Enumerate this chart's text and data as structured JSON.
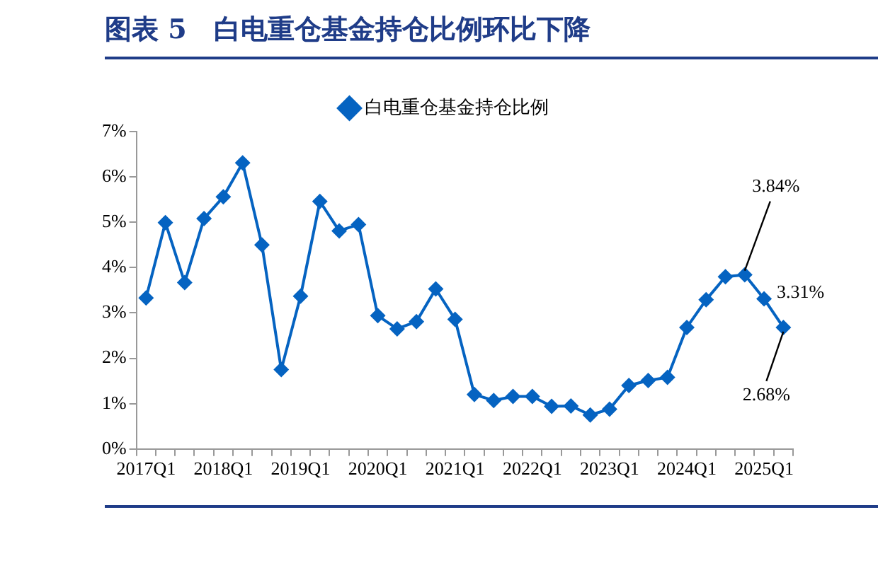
{
  "chart_data": {
    "type": "line",
    "title": "图表 5　白电重仓基金持仓比例环比下降",
    "categories": [
      "2017Q1",
      null,
      null,
      null,
      "2018Q1",
      null,
      null,
      null,
      "2019Q1",
      null,
      null,
      null,
      "2020Q1",
      null,
      null,
      null,
      "2021Q1",
      null,
      null,
      null,
      "2022Q1",
      null,
      null,
      null,
      "2023Q1",
      null,
      null,
      null,
      "2024Q1",
      null,
      null,
      null,
      "2025Q1",
      null
    ],
    "series": [
      {
        "name": "白电重仓基金持仓比例",
        "color": "#0563c1",
        "values": [
          3.33,
          4.99,
          3.67,
          5.08,
          5.56,
          6.31,
          4.5,
          1.75,
          3.37,
          5.46,
          4.81,
          4.95,
          2.94,
          2.65,
          2.81,
          3.53,
          2.86,
          1.2,
          1.07,
          1.16,
          1.16,
          0.94,
          0.95,
          0.75,
          0.88,
          1.4,
          1.51,
          1.58,
          2.68,
          3.29,
          3.8,
          3.84,
          3.31,
          2.68
        ],
        "value_labels": [
          null,
          null,
          null,
          null,
          null,
          null,
          null,
          null,
          null,
          null,
          null,
          null,
          null,
          null,
          null,
          null,
          null,
          null,
          null,
          null,
          null,
          null,
          null,
          null,
          null,
          null,
          null,
          null,
          null,
          null,
          null,
          "3.84%",
          "3.31%",
          "2.68%"
        ]
      }
    ],
    "ylim": [
      0,
      7
    ],
    "yticks": [
      {
        "value": 0,
        "label": "0%"
      },
      {
        "value": 1,
        "label": "1%"
      },
      {
        "value": 2,
        "label": "2%"
      },
      {
        "value": 3,
        "label": "3%"
      },
      {
        "value": 4,
        "label": "4%"
      },
      {
        "value": 5,
        "label": "5%"
      },
      {
        "value": 6,
        "label": "6%"
      },
      {
        "value": 7,
        "label": "7%"
      }
    ],
    "grid": false,
    "legend": "top",
    "marker": "diamond",
    "line_style": "solid"
  }
}
